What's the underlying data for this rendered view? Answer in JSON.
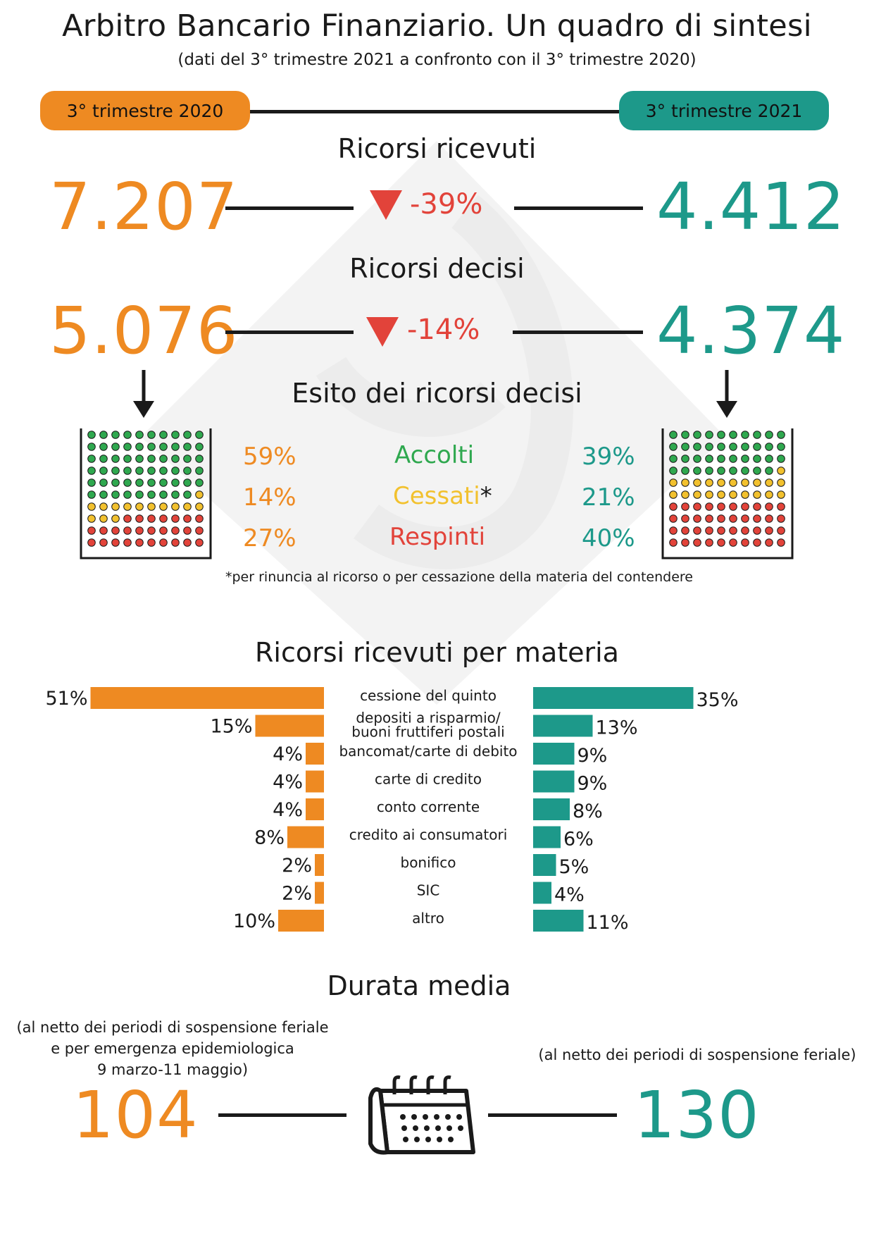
{
  "header": {
    "title": "Arbitro Bancario Finanziario. Un quadro di sintesi",
    "subtitle": "(dati del 3° trimestre 2021 a confronto con il 3° trimestre  2020)",
    "period_left": "3° trimestre 2020",
    "period_right": "3° trimestre 2021"
  },
  "colors": {
    "orange": "#ee8a22",
    "teal": "#1d998a",
    "red": "#e2433a",
    "green": "#2fa84f",
    "yellow": "#f2c12e"
  },
  "ricevuti": {
    "title": "Ricorsi ricevuti",
    "left": "7.207",
    "right": "4.412",
    "change": "-39%"
  },
  "decisi": {
    "title": "Ricorsi decisi",
    "left": "5.076",
    "right": "4.374",
    "change": "-14%"
  },
  "esito": {
    "title": "Esito dei ricorsi decisi",
    "rows": [
      {
        "label": "Accolti",
        "left": "59%",
        "right": "39%"
      },
      {
        "label": "Cessati",
        "asterisk": "*",
        "left": "14%",
        "right": "21%"
      },
      {
        "label": "Respinti",
        "left": "27%",
        "right": "40%"
      }
    ],
    "note": "*per rinuncia al ricorso o per cessazione della materia del contendere"
  },
  "materia": {
    "title": "Ricorsi ricevuti per materia"
  },
  "durata": {
    "title": "Durata media",
    "left_note": [
      "(al netto dei  periodi di sospensione feriale",
      "e per emergenza epidemiologica",
      "9 marzo-11 maggio)"
    ],
    "right_note": "(al netto dei  periodi di sospensione feriale)",
    "left": "104",
    "right": "130",
    "icon": "calendar-icon"
  },
  "chart_data": [
    {
      "type": "bar",
      "title": "Ricorsi ricevuti per materia",
      "categories": [
        "cessione del quinto",
        "depositi a risparmio/\nbuoni fruttiferi postali",
        "bancomat/carte di debito",
        "carte di credito",
        "conto corrente",
        "credito ai consumatori",
        "bonifico",
        "SIC",
        "altro"
      ],
      "series": [
        {
          "name": "3° trimestre 2020",
          "values": [
            51,
            15,
            4,
            4,
            4,
            8,
            2,
            2,
            10
          ]
        },
        {
          "name": "3° trimestre 2021",
          "values": [
            35,
            13,
            9,
            9,
            8,
            6,
            5,
            4,
            11
          ]
        }
      ]
    },
    {
      "type": "table",
      "title": "Esito dei ricorsi decisi",
      "categories": [
        "Accolti",
        "Cessati",
        "Respinti"
      ],
      "series": [
        {
          "name": "3° trimestre 2020",
          "values": [
            59,
            14,
            27
          ]
        },
        {
          "name": "3° trimestre 2021",
          "values": [
            39,
            21,
            40
          ]
        }
      ]
    }
  ]
}
